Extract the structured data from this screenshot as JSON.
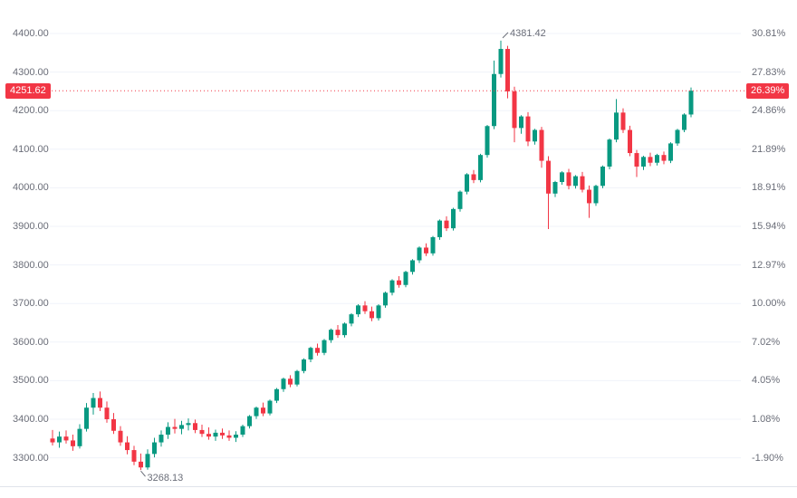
{
  "chart_data": {
    "type": "candlestick",
    "title": "",
    "price_axis": {
      "max_price": 4400,
      "min_price": 3300,
      "step": 100,
      "tick_labels": [
        "4400.00",
        "4300.00",
        "4200.00",
        "4100.00",
        "4000.00",
        "3900.00",
        "3800.00",
        "3700.00",
        "3600.00",
        "3500.00",
        "3400.00",
        "3300.00"
      ]
    },
    "percent_axis": {
      "tick_labels": [
        "30.81%",
        "27.83%",
        "24.86%",
        "21.89%",
        "18.91%",
        "15.94%",
        "12.97%",
        "10.00%",
        "7.02%",
        "4.05%",
        "1.08%",
        "-1.90%"
      ]
    },
    "last": {
      "price": 4251.62,
      "price_label": "4251.62",
      "percent_label": "26.39%"
    },
    "annotations": {
      "high": {
        "label": "4381.42",
        "value": 4381.42,
        "candle_index": 66
      },
      "low": {
        "label": "3268.13",
        "value": 3268.13,
        "candle_index": 13
      }
    },
    "colors": {
      "up": "#089981",
      "down": "#f23645",
      "last_price": "#f23645",
      "grid": "#f0f3fa",
      "axis_text": "#6a6d78",
      "axis_line": "#e0e3eb",
      "background": "#ffffff"
    },
    "candles_ohlc": [
      [
        3350,
        3372,
        3332,
        3340
      ],
      [
        3340,
        3368,
        3326,
        3355
      ],
      [
        3355,
        3371,
        3337,
        3345
      ],
      [
        3345,
        3360,
        3318,
        3330
      ],
      [
        3330,
        3387,
        3324,
        3375
      ],
      [
        3375,
        3442,
        3368,
        3430
      ],
      [
        3430,
        3468,
        3412,
        3455
      ],
      [
        3455,
        3472,
        3421,
        3430
      ],
      [
        3430,
        3446,
        3391,
        3400
      ],
      [
        3400,
        3416,
        3362,
        3370
      ],
      [
        3370,
        3382,
        3331,
        3340
      ],
      [
        3340,
        3356,
        3309,
        3320
      ],
      [
        3320,
        3331,
        3281,
        3290
      ],
      [
        3290,
        3311,
        3268.13,
        3275
      ],
      [
        3275,
        3322,
        3269,
        3310
      ],
      [
        3310,
        3352,
        3301,
        3340
      ],
      [
        3340,
        3371,
        3329,
        3360
      ],
      [
        3360,
        3392,
        3349,
        3380
      ],
      [
        3380,
        3401,
        3363,
        3375
      ],
      [
        3375,
        3396,
        3361,
        3385
      ],
      [
        3385,
        3402,
        3371,
        3390
      ],
      [
        3390,
        3399,
        3364,
        3372
      ],
      [
        3372,
        3386,
        3354,
        3362
      ],
      [
        3362,
        3379,
        3347,
        3355
      ],
      [
        3355,
        3373,
        3344,
        3365
      ],
      [
        3365,
        3376,
        3349,
        3358
      ],
      [
        3358,
        3371,
        3344,
        3352
      ],
      [
        3352,
        3369,
        3341,
        3360
      ],
      [
        3360,
        3386,
        3354,
        3382
      ],
      [
        3382,
        3411,
        3376,
        3408
      ],
      [
        3408,
        3433,
        3401,
        3430
      ],
      [
        3430,
        3443,
        3408,
        3415
      ],
      [
        3415,
        3451,
        3410,
        3448
      ],
      [
        3448,
        3481,
        3442,
        3478
      ],
      [
        3478,
        3508,
        3471,
        3505
      ],
      [
        3505,
        3514,
        3483,
        3490
      ],
      [
        3490,
        3528,
        3485,
        3525
      ],
      [
        3525,
        3558,
        3519,
        3555
      ],
      [
        3555,
        3588,
        3548,
        3585
      ],
      [
        3585,
        3596,
        3565,
        3572
      ],
      [
        3572,
        3608,
        3566,
        3605
      ],
      [
        3605,
        3635,
        3598,
        3632
      ],
      [
        3632,
        3644,
        3611,
        3618
      ],
      [
        3618,
        3651,
        3612,
        3648
      ],
      [
        3648,
        3675,
        3641,
        3672
      ],
      [
        3672,
        3698,
        3665,
        3695
      ],
      [
        3695,
        3706,
        3673,
        3680
      ],
      [
        3680,
        3692,
        3654,
        3662
      ],
      [
        3662,
        3698,
        3656,
        3695
      ],
      [
        3695,
        3731,
        3689,
        3728
      ],
      [
        3728,
        3763,
        3721,
        3760
      ],
      [
        3760,
        3771,
        3741,
        3748
      ],
      [
        3748,
        3785,
        3742,
        3782
      ],
      [
        3782,
        3815,
        3775,
        3812
      ],
      [
        3812,
        3848,
        3805,
        3845
      ],
      [
        3845,
        3856,
        3823,
        3830
      ],
      [
        3830,
        3875,
        3824,
        3872
      ],
      [
        3872,
        3918,
        3865,
        3915
      ],
      [
        3915,
        3926,
        3888,
        3895
      ],
      [
        3895,
        3948,
        3889,
        3945
      ],
      [
        3945,
        3993,
        3938,
        3990
      ],
      [
        3990,
        4038,
        3983,
        4035
      ],
      [
        4035,
        4046,
        4012,
        4020
      ],
      [
        4020,
        4088,
        4014,
        4085
      ],
      [
        4085,
        4163,
        4078,
        4160
      ],
      [
        4160,
        4330,
        4152,
        4295
      ],
      [
        4295,
        4381.42,
        4286,
        4360
      ],
      [
        4360,
        4368,
        4232,
        4250
      ],
      [
        4250,
        4262,
        4118,
        4155
      ],
      [
        4155,
        4188,
        4140,
        4185
      ],
      [
        4185,
        4196,
        4108,
        4120
      ],
      [
        4120,
        4153,
        4112,
        4150
      ],
      [
        4150,
        4158,
        4052,
        4070
      ],
      [
        4070,
        4082,
        3893,
        3985
      ],
      [
        3985,
        4018,
        3976,
        4015
      ],
      [
        4015,
        4043,
        4008,
        4040
      ],
      [
        4040,
        4049,
        3996,
        4005
      ],
      [
        4005,
        4033,
        3998,
        4030
      ],
      [
        4030,
        4041,
        3988,
        3995
      ],
      [
        3995,
        4006,
        3922,
        3960
      ],
      [
        3960,
        4008,
        3953,
        4005
      ],
      [
        4005,
        4058,
        3999,
        4055
      ],
      [
        4055,
        4128,
        4048,
        4125
      ],
      [
        4125,
        4230,
        4118,
        4195
      ],
      [
        4195,
        4206,
        4142,
        4150
      ],
      [
        4150,
        4161,
        4082,
        4090
      ],
      [
        4090,
        4098,
        4028,
        4055
      ],
      [
        4055,
        4083,
        4046,
        4080
      ],
      [
        4080,
        4091,
        4056,
        4065
      ],
      [
        4065,
        4088,
        4058,
        4085
      ],
      [
        4085,
        4094,
        4061,
        4070
      ],
      [
        4070,
        4118,
        4064,
        4115
      ],
      [
        4115,
        4153,
        4109,
        4150
      ],
      [
        4150,
        4193,
        4144,
        4190
      ],
      [
        4190,
        4260,
        4183,
        4251.62
      ]
    ]
  }
}
